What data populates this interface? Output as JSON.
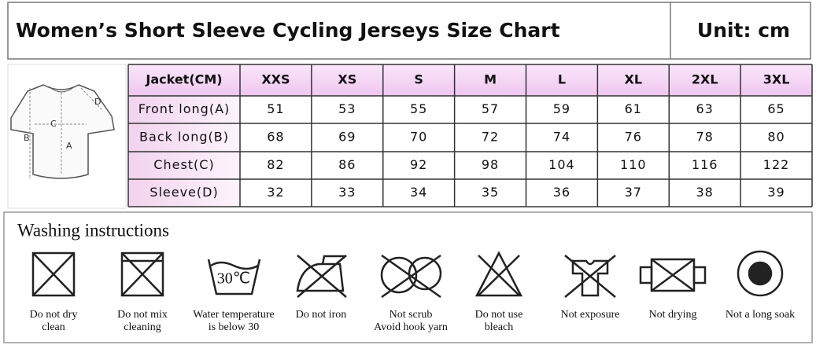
{
  "header": {
    "title": "Women’s Short Sleeve Cycling Jerseys Size Chart",
    "unit": "Unit: cm"
  },
  "diagram": {
    "labels": [
      "D",
      "C",
      "B",
      "A"
    ]
  },
  "table": {
    "columns": [
      "Jacket(CM)",
      "XXS",
      "XS",
      "S",
      "M",
      "L",
      "XL",
      "2XL",
      "3XL"
    ],
    "rows": [
      [
        "Front long(A)",
        51,
        53,
        55,
        57,
        59,
        61,
        63,
        65
      ],
      [
        "Back long(B)",
        68,
        69,
        70,
        72,
        74,
        76,
        78,
        80
      ],
      [
        "Chest(C)",
        82,
        86,
        92,
        98,
        104,
        110,
        116,
        122
      ],
      [
        "Sleeve(D)",
        32,
        33,
        34,
        35,
        36,
        37,
        38,
        39
      ]
    ]
  },
  "washing": {
    "title": "Washing instructions",
    "icon_text": "30℃",
    "items": [
      [
        "Do not dry",
        "clean"
      ],
      [
        "Do not mix",
        "cleaning"
      ],
      [
        "Water temperature",
        "is below 30"
      ],
      [
        "Do not iron"
      ],
      [
        "Not scrub",
        "Avoid hook yarn"
      ],
      [
        "Do not use",
        "bleach"
      ],
      [
        "Not exposure"
      ],
      [
        "Not drying"
      ],
      [
        "Not a long soak"
      ]
    ]
  }
}
